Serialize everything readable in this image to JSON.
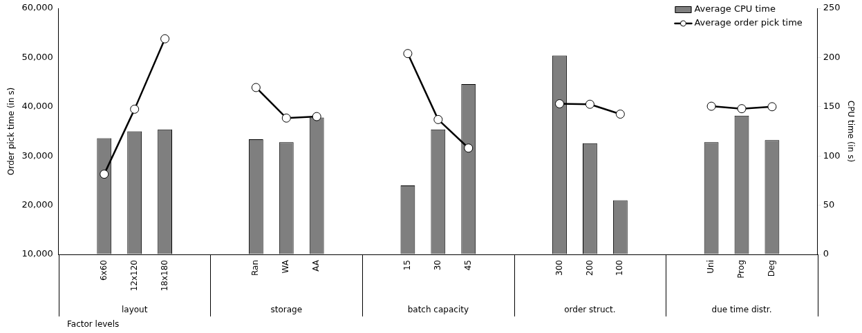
{
  "chart_data": {
    "type": "bar",
    "xlabel": "Factor levels",
    "ylabel": "Order pick time (in s)",
    "y2label": "CPU time (in s)",
    "categories": [
      null,
      "6x60",
      "12x120",
      "18x180",
      null,
      null,
      "Ran",
      "WA",
      "AA",
      null,
      null,
      "15",
      "30",
      "45",
      null,
      null,
      "300",
      "200",
      "100",
      null,
      null,
      "Uni",
      "Prog",
      "Deg",
      null
    ],
    "series": [
      {
        "name": "Average CPU time",
        "axis": "y2",
        "color": "#7f7f7f",
        "values": [
          null,
          118,
          125,
          127,
          null,
          null,
          117,
          114,
          139,
          null,
          null,
          70,
          127,
          173,
          null,
          null,
          202,
          113,
          55,
          null,
          null,
          114,
          141,
          116,
          null
        ]
      },
      {
        "name": "Average order pick time",
        "type": "line",
        "axis": "y",
        "color": "#000000",
        "values": [
          null,
          26300,
          39500,
          53800,
          null,
          null,
          43900,
          37700,
          38000,
          null,
          null,
          50800,
          37400,
          31600,
          null,
          null,
          40600,
          40500,
          38500,
          null,
          null,
          40100,
          39600,
          40000,
          null
        ]
      }
    ],
    "ylim": [
      10000,
      60000
    ],
    "yticks": [
      {
        "value": 10000,
        "label": "10,000"
      },
      {
        "value": 20000,
        "label": "20,000"
      },
      {
        "value": 30000,
        "label": "30,000"
      },
      {
        "value": 40000,
        "label": "40,000"
      },
      {
        "value": 50000,
        "label": "50,000"
      },
      {
        "value": 60000,
        "label": "60,000"
      }
    ],
    "y2lim": [
      0,
      250
    ],
    "y2ticks": [
      0,
      50,
      100,
      150,
      200,
      250
    ],
    "annotations": [
      "layout",
      "storage",
      "batch capacity",
      "order struct.",
      "due time distr."
    ],
    "legend": "top right",
    "marker": "circle",
    "grid": false
  }
}
